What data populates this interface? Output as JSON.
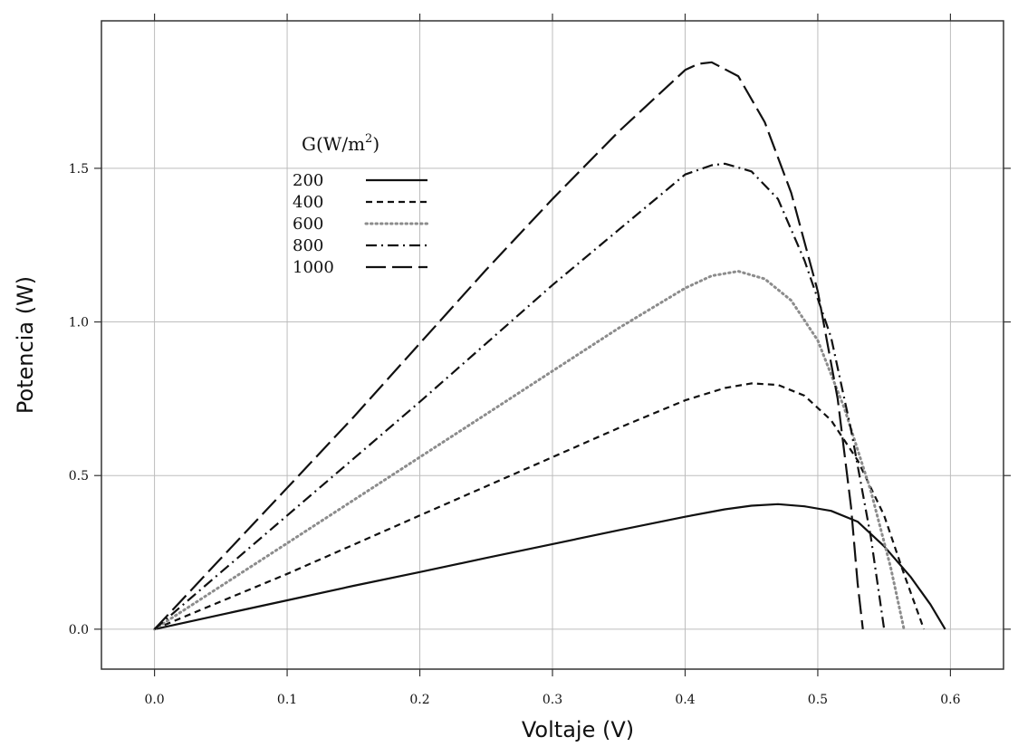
{
  "chart_data": {
    "type": "line",
    "title": "",
    "xlabel": "Voltaje (V)",
    "ylabel": "Potencia (W)",
    "xlim": [
      -0.04,
      0.64
    ],
    "ylim": [
      -0.13,
      1.98
    ],
    "xticks": [
      0.0,
      0.1,
      0.2,
      0.3,
      0.4,
      0.5,
      0.6
    ],
    "xtick_labels": [
      "0.0",
      "0.1",
      "0.2",
      "0.3",
      "0.4",
      "0.5",
      "0.6"
    ],
    "yticks": [
      0.0,
      0.5,
      1.0,
      1.5
    ],
    "ytick_labels": [
      "0.0",
      "0.5",
      "1.0",
      "1.5"
    ],
    "grid": true,
    "legend": {
      "title_main": "G(W/m",
      "title_sup": "2",
      "title_close": ")",
      "placement": "upper-left"
    },
    "series": [
      {
        "name": "200",
        "color": "#111111",
        "dash": "solid",
        "points": [
          [
            0.0,
            0.0
          ],
          [
            0.05,
            0.047
          ],
          [
            0.1,
            0.094
          ],
          [
            0.15,
            0.141
          ],
          [
            0.2,
            0.186
          ],
          [
            0.25,
            0.232
          ],
          [
            0.3,
            0.277
          ],
          [
            0.35,
            0.322
          ],
          [
            0.4,
            0.366
          ],
          [
            0.43,
            0.39
          ],
          [
            0.45,
            0.402
          ],
          [
            0.47,
            0.407
          ],
          [
            0.49,
            0.4
          ],
          [
            0.51,
            0.385
          ],
          [
            0.53,
            0.35
          ],
          [
            0.55,
            0.27
          ],
          [
            0.57,
            0.17
          ],
          [
            0.585,
            0.08
          ],
          [
            0.596,
            0.0
          ]
        ]
      },
      {
        "name": "400",
        "color": "#111111",
        "dash": "short",
        "points": [
          [
            0.0,
            0.0
          ],
          [
            0.05,
            0.09
          ],
          [
            0.1,
            0.18
          ],
          [
            0.15,
            0.275
          ],
          [
            0.2,
            0.37
          ],
          [
            0.25,
            0.465
          ],
          [
            0.3,
            0.56
          ],
          [
            0.35,
            0.655
          ],
          [
            0.4,
            0.745
          ],
          [
            0.43,
            0.785
          ],
          [
            0.45,
            0.8
          ],
          [
            0.47,
            0.795
          ],
          [
            0.49,
            0.76
          ],
          [
            0.51,
            0.68
          ],
          [
            0.53,
            0.55
          ],
          [
            0.55,
            0.37
          ],
          [
            0.565,
            0.18
          ],
          [
            0.58,
            0.0
          ]
        ]
      },
      {
        "name": "600",
        "color": "#8c8c8c",
        "dash": "dotted",
        "points": [
          [
            0.0,
            0.0
          ],
          [
            0.05,
            0.14
          ],
          [
            0.1,
            0.28
          ],
          [
            0.15,
            0.42
          ],
          [
            0.2,
            0.56
          ],
          [
            0.25,
            0.7
          ],
          [
            0.3,
            0.84
          ],
          [
            0.35,
            0.98
          ],
          [
            0.4,
            1.11
          ],
          [
            0.42,
            1.15
          ],
          [
            0.44,
            1.165
          ],
          [
            0.46,
            1.14
          ],
          [
            0.48,
            1.07
          ],
          [
            0.5,
            0.94
          ],
          [
            0.52,
            0.72
          ],
          [
            0.54,
            0.45
          ],
          [
            0.555,
            0.2
          ],
          [
            0.565,
            0.0
          ]
        ]
      },
      {
        "name": "800",
        "color": "#111111",
        "dash": "dashdot",
        "points": [
          [
            0.0,
            0.0
          ],
          [
            0.05,
            0.185
          ],
          [
            0.1,
            0.37
          ],
          [
            0.15,
            0.555
          ],
          [
            0.2,
            0.74
          ],
          [
            0.25,
            0.93
          ],
          [
            0.3,
            1.12
          ],
          [
            0.35,
            1.3
          ],
          [
            0.4,
            1.48
          ],
          [
            0.42,
            1.51
          ],
          [
            0.43,
            1.515
          ],
          [
            0.45,
            1.49
          ],
          [
            0.47,
            1.4
          ],
          [
            0.49,
            1.2
          ],
          [
            0.51,
            0.95
          ],
          [
            0.525,
            0.65
          ],
          [
            0.54,
            0.3
          ],
          [
            0.55,
            0.0
          ]
        ]
      },
      {
        "name": "1000",
        "color": "#111111",
        "dash": "long",
        "points": [
          [
            0.0,
            0.0
          ],
          [
            0.05,
            0.23
          ],
          [
            0.1,
            0.46
          ],
          [
            0.15,
            0.69
          ],
          [
            0.2,
            0.93
          ],
          [
            0.25,
            1.17
          ],
          [
            0.3,
            1.4
          ],
          [
            0.35,
            1.62
          ],
          [
            0.4,
            1.82
          ],
          [
            0.41,
            1.84
          ],
          [
            0.42,
            1.845
          ],
          [
            0.44,
            1.8
          ],
          [
            0.46,
            1.65
          ],
          [
            0.48,
            1.42
          ],
          [
            0.5,
            1.1
          ],
          [
            0.515,
            0.75
          ],
          [
            0.525,
            0.4
          ],
          [
            0.53,
            0.15
          ],
          [
            0.534,
            0.0
          ]
        ]
      }
    ]
  }
}
